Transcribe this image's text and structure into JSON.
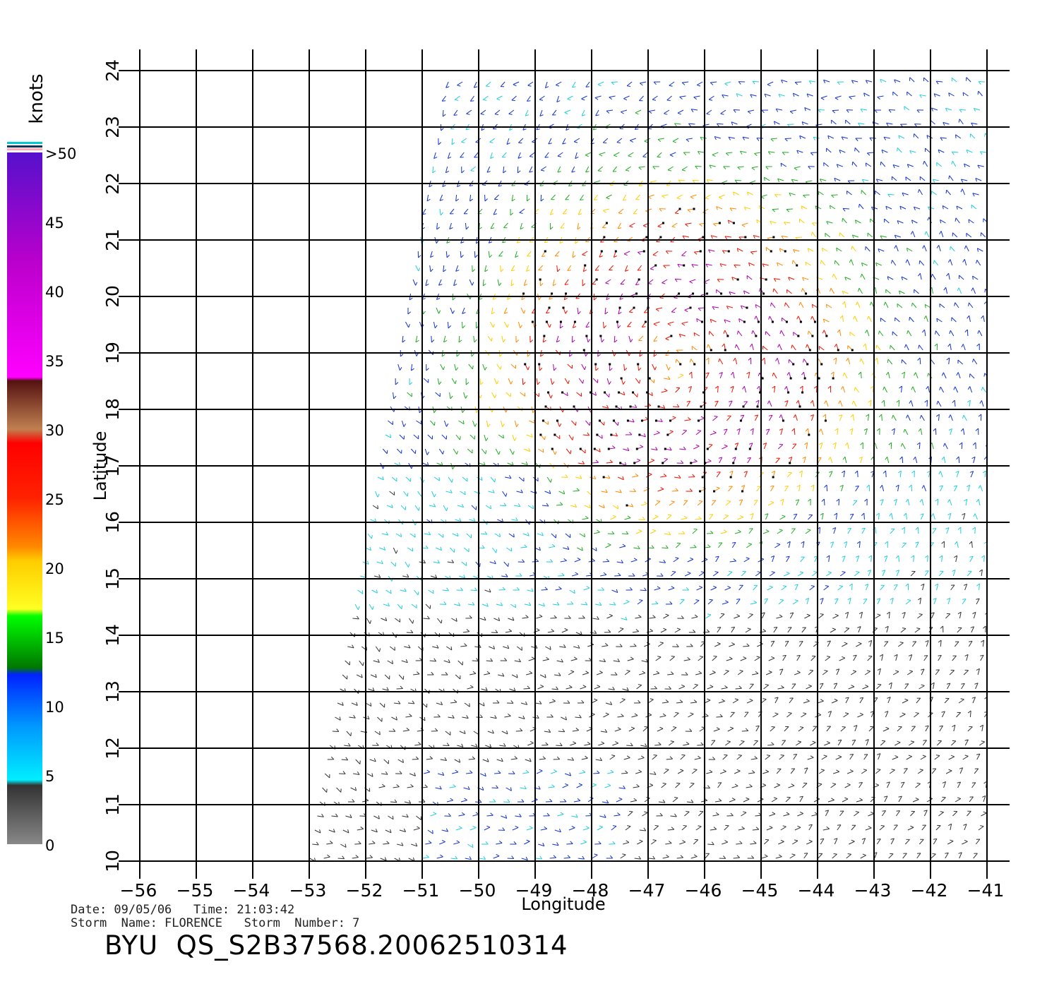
{
  "map": {
    "type": "scatterometer-wind-vectors",
    "xlabel": "Longitude",
    "ylabel": "Latitude",
    "x_range": [
      -56,
      -41
    ],
    "y_range": [
      10,
      24
    ],
    "x_ticks": [
      "-56",
      "-55",
      "-54",
      "-53",
      "-52",
      "-51",
      "-50",
      "-49",
      "-48",
      "-47",
      "-46",
      "-45",
      "-44",
      "-43",
      "-42",
      "-41"
    ],
    "y_ticks": [
      "10",
      "11",
      "12",
      "13",
      "14",
      "15",
      "16",
      "17",
      "18",
      "19",
      "20",
      "21",
      "22",
      "23",
      "24"
    ],
    "grid": true,
    "swath_edge": {
      "bottom_lon": -53,
      "top_lon": -50.5
    },
    "storm_center": {
      "lon": -46.5,
      "lat": 18.8
    },
    "secondary_lows": [
      {
        "lon": -49.2,
        "lat": 16.8
      },
      {
        "lon": -48.2,
        "lat": 13.0
      }
    ],
    "colorbar": {
      "unit_label": "knots",
      "ticks": [
        "0",
        "5",
        "10",
        "15",
        "20",
        "25",
        "30",
        "35",
        "40",
        "45",
        ">50"
      ],
      "colors": [
        "#808080",
        "#00eeff",
        "#0033ff",
        "#00ff00",
        "#ffd700",
        "#ff3300",
        "#b87040",
        "#ff00ff",
        "#7711cc"
      ]
    }
  },
  "info": {
    "date_line": "Date: 09/05/06   Time: 21:03:42",
    "storm_line": "Storm  Name: FLORENCE   Storm  Number: 7",
    "title": "BYU  QS_S2B37568.20062510314"
  }
}
